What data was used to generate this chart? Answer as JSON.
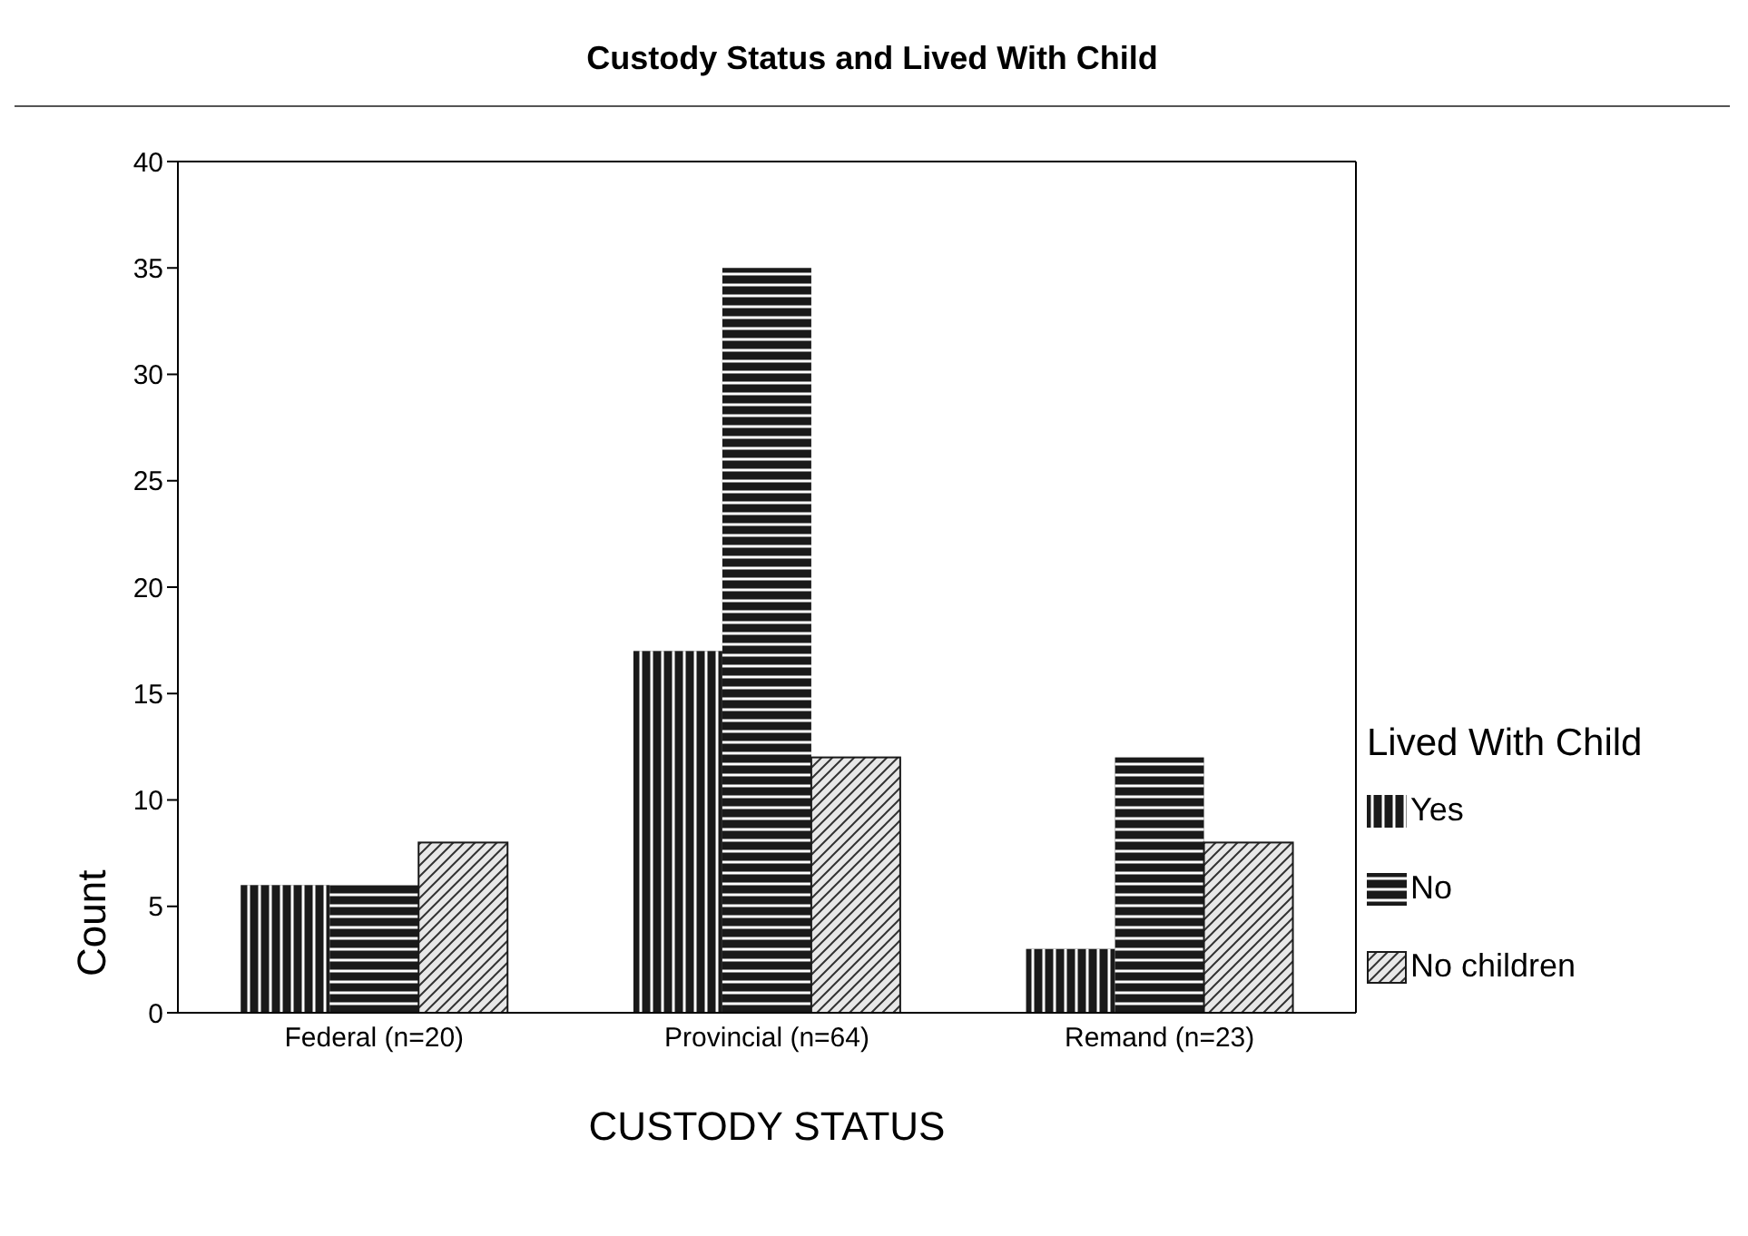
{
  "chart_data": {
    "type": "bar",
    "title": "Custody Status and Lived With Child",
    "xlabel": "CUSTODY STATUS",
    "ylabel": "Count",
    "legend_title": "Lived With Child",
    "categories": [
      "Federal (n=20)",
      "Provincial (n=64)",
      "Remand (n=23)"
    ],
    "series": [
      {
        "name": "Yes",
        "color": "#1a1a1a",
        "values": [
          6,
          17,
          3
        ]
      },
      {
        "name": "No",
        "color": "#1a1a1a",
        "values": [
          6,
          35,
          12
        ]
      },
      {
        "name": "No children",
        "color": "#e8e8e8",
        "values": [
          8,
          12,
          8
        ]
      }
    ],
    "ylim": [
      0,
      40
    ],
    "yticks": [
      0,
      5,
      10,
      15,
      20,
      25,
      30,
      35,
      40
    ],
    "grid": false,
    "legend": "right"
  }
}
